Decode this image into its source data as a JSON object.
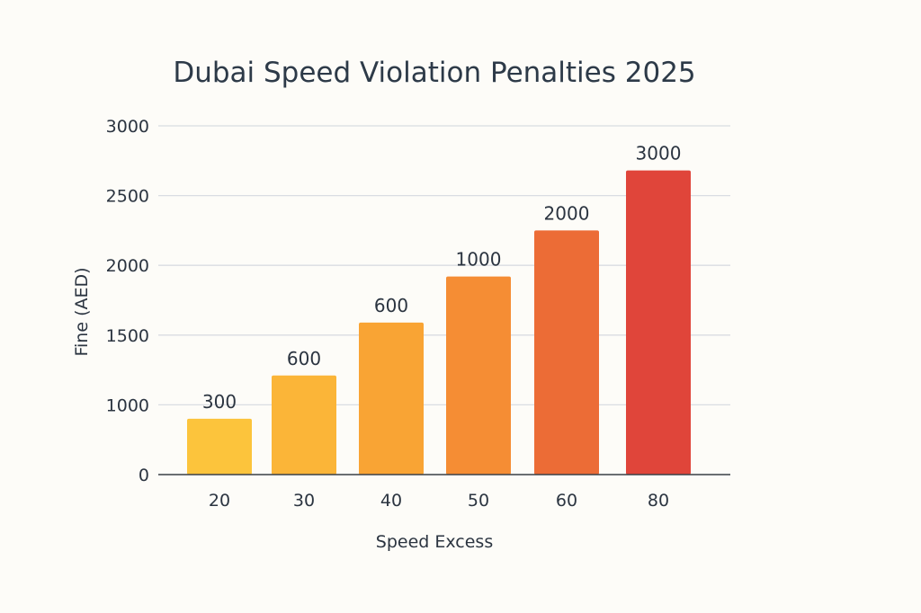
{
  "chart_data": {
    "type": "bar",
    "title": "Dubai Speed Violation Penalties 2025",
    "xlabel": "Speed Excess",
    "ylabel": "Fine (AED)",
    "categories": [
      "20",
      "30",
      "40",
      "50",
      "60",
      "80"
    ],
    "values": [
      300,
      600,
      600,
      1000,
      2000,
      3000
    ],
    "bar_heights_on_axis": [
      900,
      1210,
      1590,
      1920,
      2250,
      2680
    ],
    "y_ticks": [
      "0",
      "1000",
      "1500",
      "2000",
      "2500",
      "3000"
    ],
    "ylim": [
      0,
      3000
    ],
    "grid": true,
    "bar_colors": [
      "#fcc43c",
      "#fbb538",
      "#f9a434",
      "#f58d34",
      "#ec6c36",
      "#e0453a"
    ]
  }
}
